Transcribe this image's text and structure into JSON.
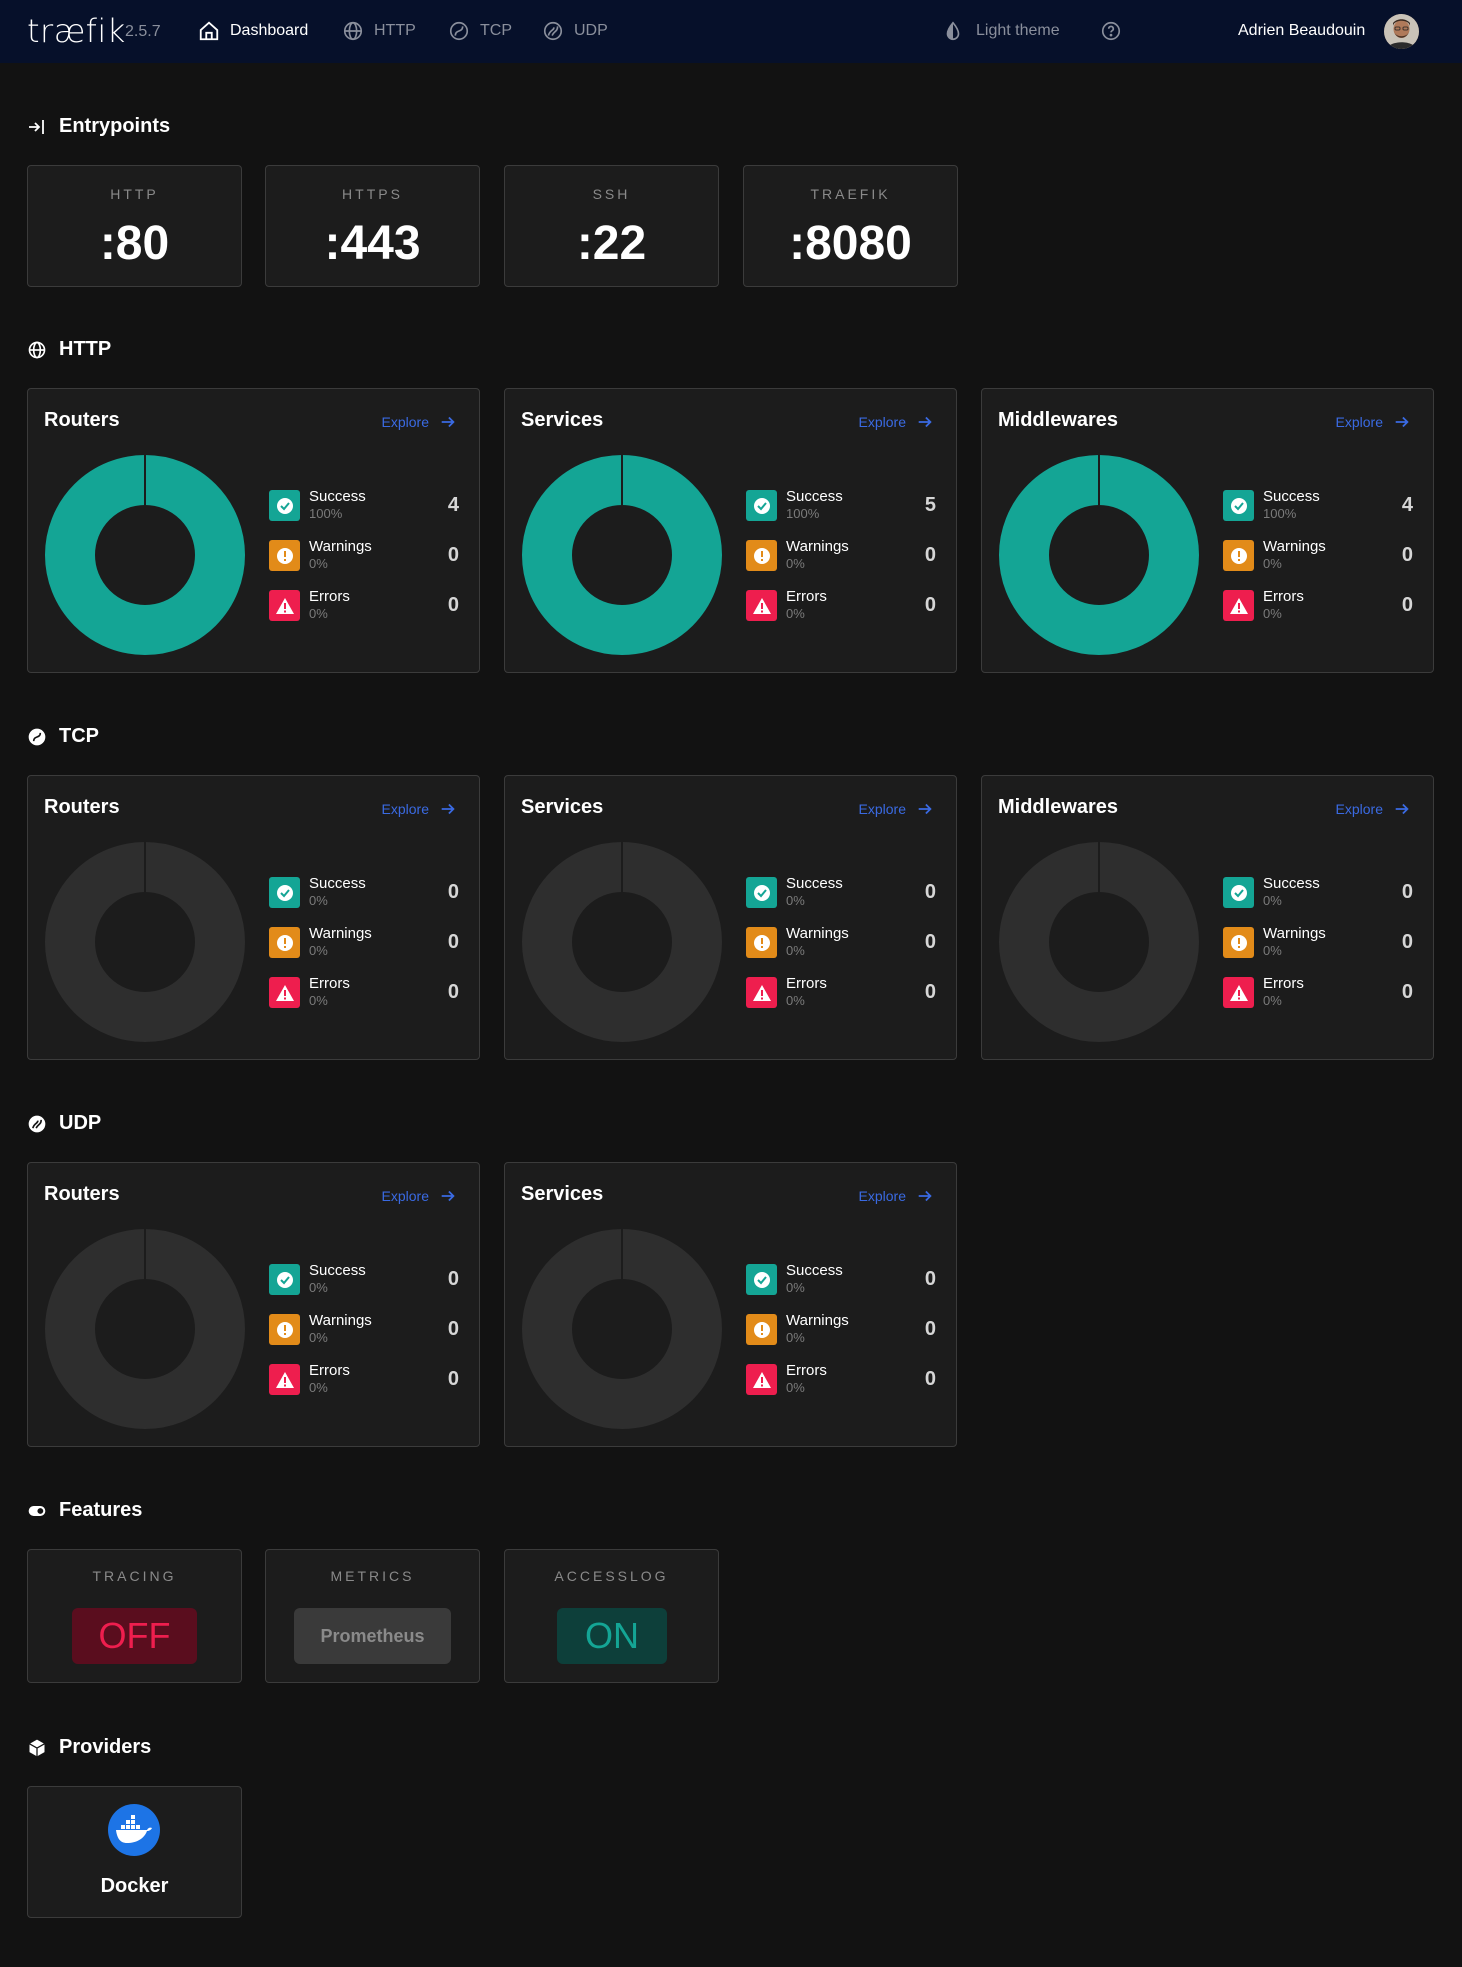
{
  "navbar": {
    "logo": "træfik",
    "version": "2.5.7",
    "items": [
      {
        "label": "Dashboard",
        "icon": "home-icon",
        "active": true
      },
      {
        "label": "HTTP",
        "icon": "globe-icon",
        "active": false
      },
      {
        "label": "TCP",
        "icon": "tcp-icon",
        "active": false
      },
      {
        "label": "UDP",
        "icon": "udp-icon",
        "active": false
      }
    ],
    "theme_label": "Light theme",
    "user_name": "Adrien Beaudouin"
  },
  "entrypoints": {
    "title": "Entrypoints",
    "items": [
      {
        "name": "HTTP",
        "port": ":80"
      },
      {
        "name": "HTTPS",
        "port": ":443"
      },
      {
        "name": "SSH",
        "port": ":22"
      },
      {
        "name": "TRAEFIK",
        "port": ":8080"
      }
    ]
  },
  "explore_label": "Explore",
  "legend_labels": {
    "success": "Success",
    "warnings": "Warnings",
    "errors": "Errors"
  },
  "colors": {
    "success": "#14a595",
    "warnings": "#e28b19",
    "errors": "#ee1e4e",
    "empty": "#2e2e2e"
  },
  "http": {
    "title": "HTTP",
    "cards": [
      {
        "title": "Routers",
        "success": {
          "count": "4",
          "pct": "100%"
        },
        "warnings": {
          "count": "0",
          "pct": "0%"
        },
        "errors": {
          "count": "0",
          "pct": "0%"
        }
      },
      {
        "title": "Services",
        "success": {
          "count": "5",
          "pct": "100%"
        },
        "warnings": {
          "count": "0",
          "pct": "0%"
        },
        "errors": {
          "count": "0",
          "pct": "0%"
        }
      },
      {
        "title": "Middlewares",
        "success": {
          "count": "4",
          "pct": "100%"
        },
        "warnings": {
          "count": "0",
          "pct": "0%"
        },
        "errors": {
          "count": "0",
          "pct": "0%"
        }
      }
    ]
  },
  "tcp": {
    "title": "TCP",
    "cards": [
      {
        "title": "Routers",
        "success": {
          "count": "0",
          "pct": "0%"
        },
        "warnings": {
          "count": "0",
          "pct": "0%"
        },
        "errors": {
          "count": "0",
          "pct": "0%"
        }
      },
      {
        "title": "Services",
        "success": {
          "count": "0",
          "pct": "0%"
        },
        "warnings": {
          "count": "0",
          "pct": "0%"
        },
        "errors": {
          "count": "0",
          "pct": "0%"
        }
      },
      {
        "title": "Middlewares",
        "success": {
          "count": "0",
          "pct": "0%"
        },
        "warnings": {
          "count": "0",
          "pct": "0%"
        },
        "errors": {
          "count": "0",
          "pct": "0%"
        }
      }
    ]
  },
  "udp": {
    "title": "UDP",
    "cards": [
      {
        "title": "Routers",
        "success": {
          "count": "0",
          "pct": "0%"
        },
        "warnings": {
          "count": "0",
          "pct": "0%"
        },
        "errors": {
          "count": "0",
          "pct": "0%"
        }
      },
      {
        "title": "Services",
        "success": {
          "count": "0",
          "pct": "0%"
        },
        "warnings": {
          "count": "0",
          "pct": "0%"
        },
        "errors": {
          "count": "0",
          "pct": "0%"
        }
      }
    ]
  },
  "features": {
    "title": "Features",
    "items": [
      {
        "name": "TRACING",
        "value": "OFF"
      },
      {
        "name": "METRICS",
        "value": "Prometheus"
      },
      {
        "name": "ACCESSLOG",
        "value": "ON"
      }
    ]
  },
  "providers": {
    "title": "Providers",
    "items": [
      {
        "name": "Docker",
        "icon": "docker-icon"
      }
    ]
  }
}
